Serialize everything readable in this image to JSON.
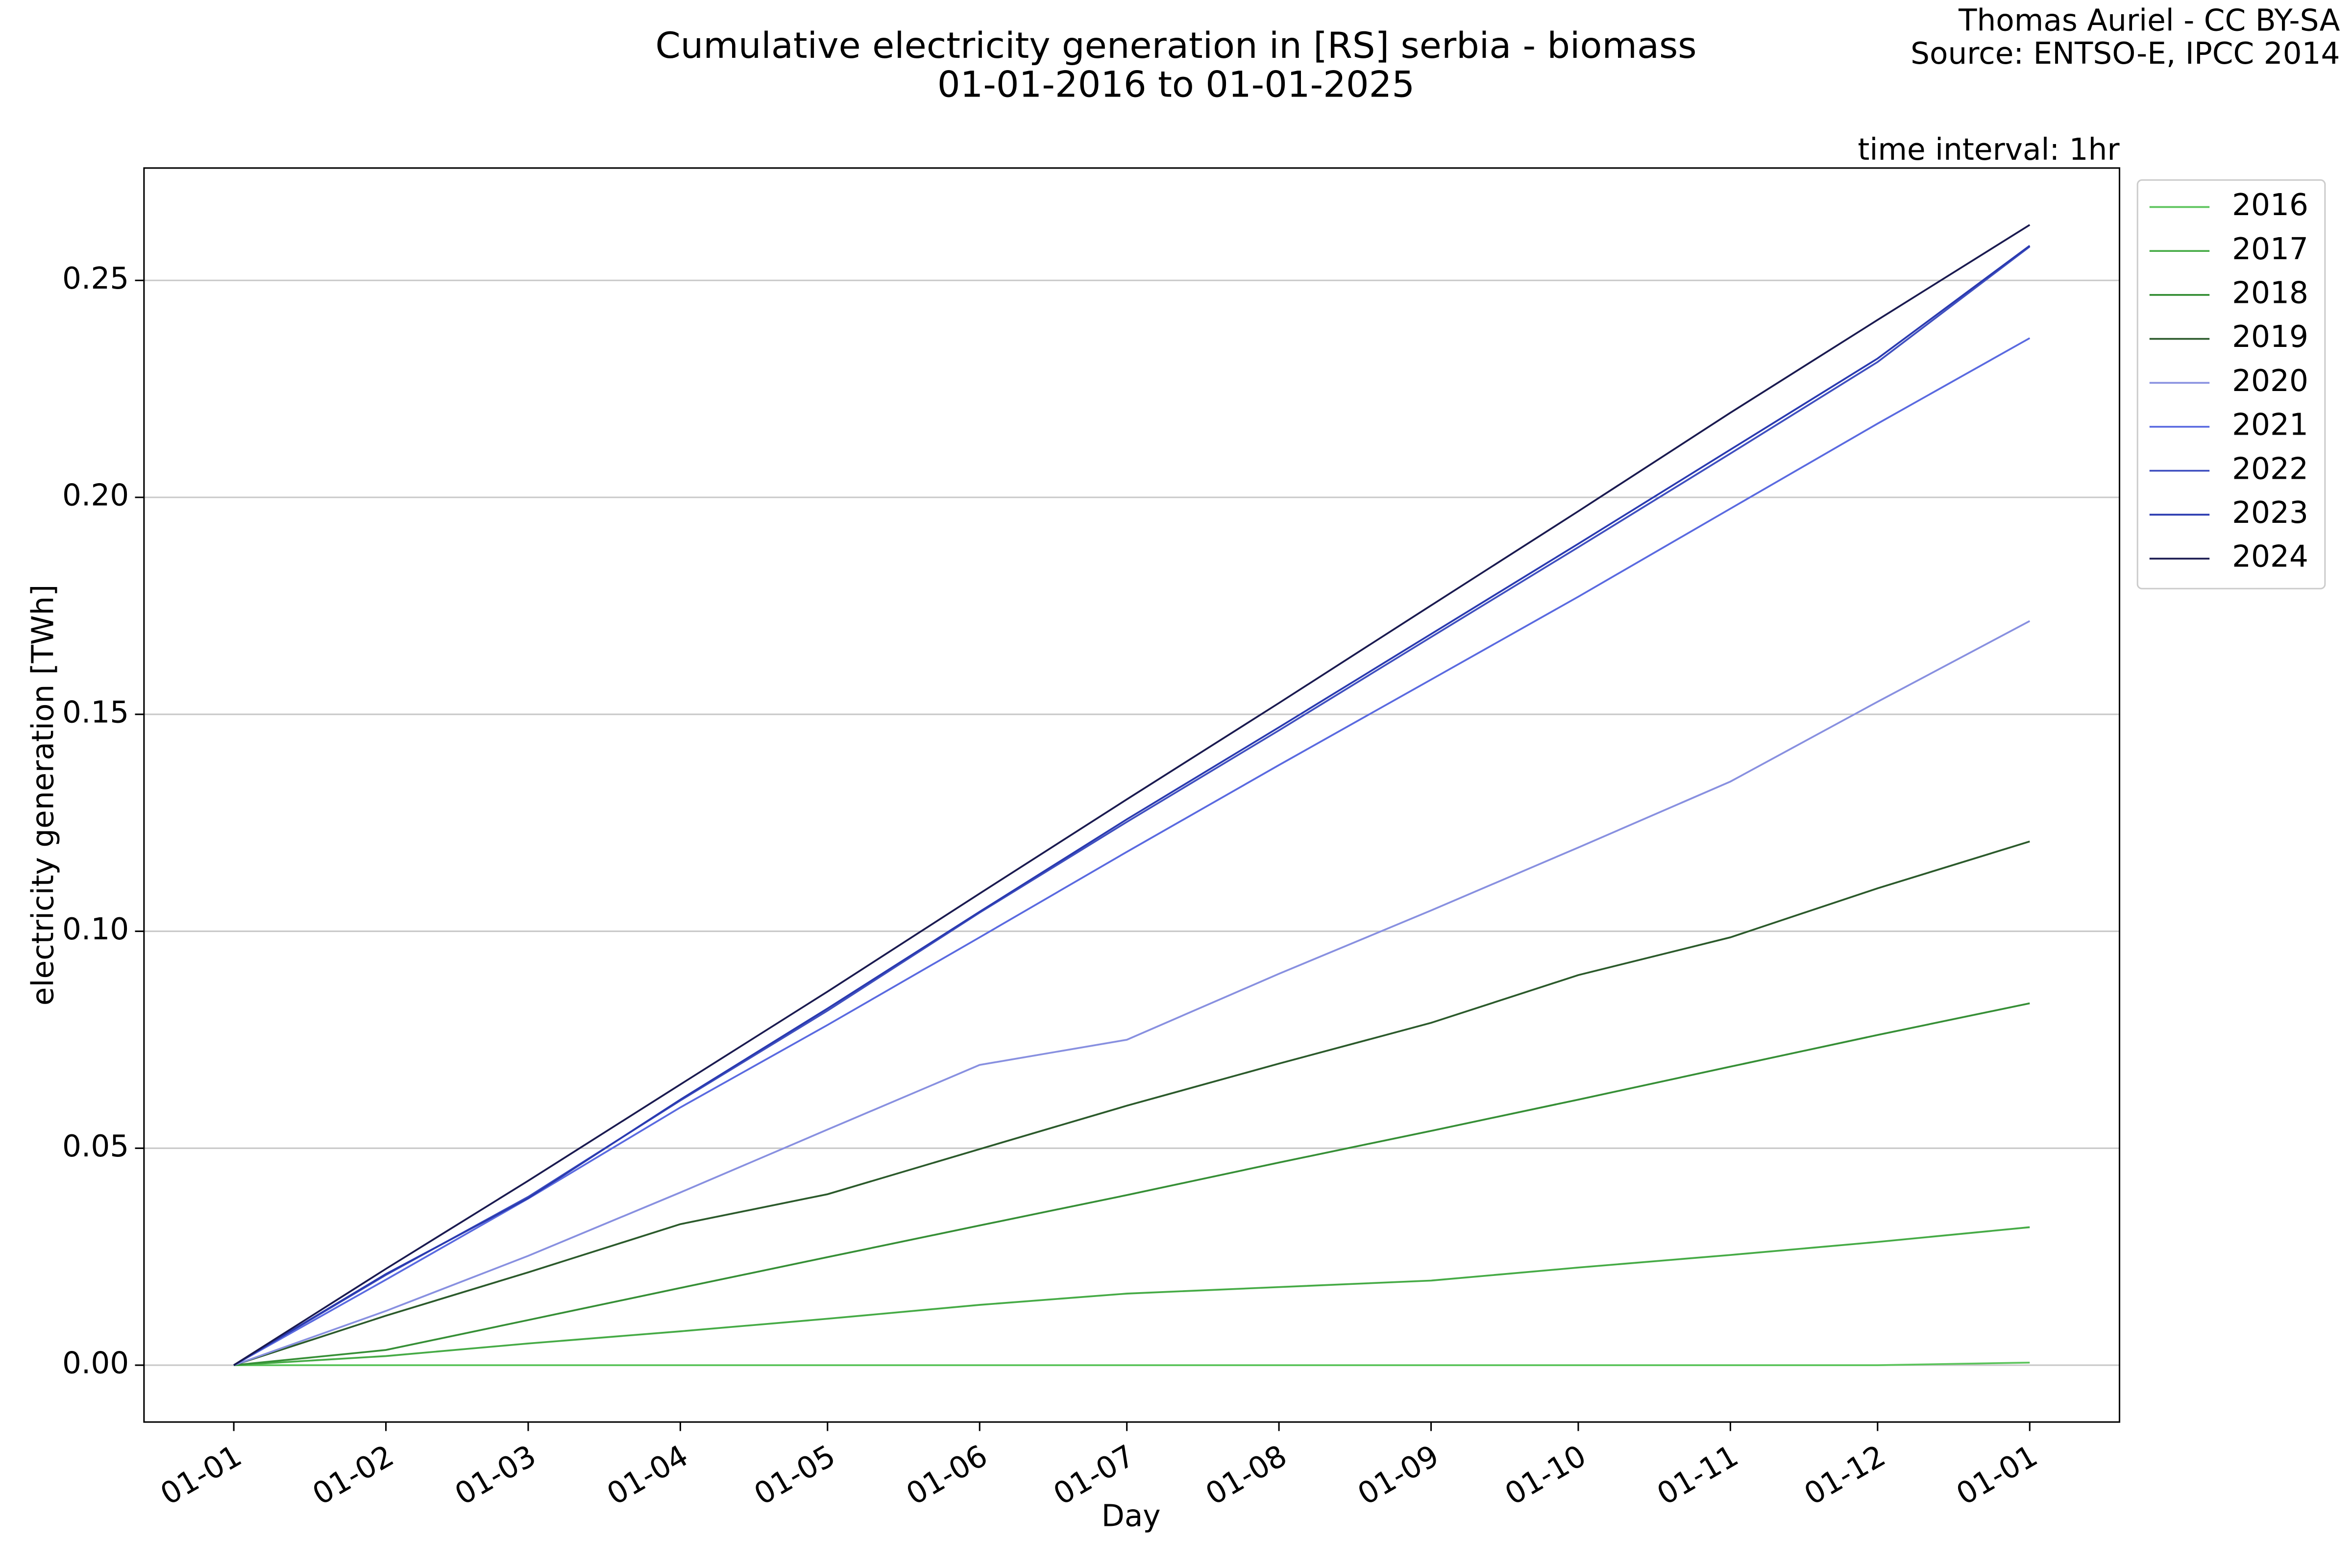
{
  "chart_data": {
    "type": "line",
    "title": "Cumulative electricity generation in [RS] serbia - biomass",
    "subtitle": "01-01-2016 to 01-01-2025",
    "credits": [
      "Thomas Auriel - CC BY-SA",
      "Source: ENTSO-E, IPCC 2014"
    ],
    "annotation": "time interval: 1hr",
    "x_label": "Day",
    "y_label": "electricity generation [TWh]",
    "x": [
      "01-01",
      "01-02",
      "01-03",
      "01-04",
      "01-05",
      "01-06",
      "01-07",
      "01-08",
      "01-09",
      "01-10",
      "01-11",
      "01-12",
      "01-01"
    ],
    "ylim": [
      -0.0131,
      0.2759
    ],
    "yticks": [
      {
        "value": 0,
        "label": "0.00"
      },
      {
        "value": 0.05,
        "label": "0.05"
      },
      {
        "value": 0.1,
        "label": "0.10"
      },
      {
        "value": 0.15,
        "label": "0.15"
      },
      {
        "value": 0.2,
        "label": "0.20"
      },
      {
        "value": 0.25,
        "label": "0.25"
      }
    ],
    "grid": true,
    "legend": "outside upper right",
    "series": [
      {
        "name": "2016",
        "color": "#5cc45c",
        "values": [
          0,
          0,
          0,
          0,
          0,
          0,
          0,
          0,
          0,
          0,
          0,
          0,
          0.0006
        ]
      },
      {
        "name": "2017",
        "color": "#46ab46",
        "values": [
          0,
          0.0021,
          0.005,
          0.0078,
          0.0107,
          0.0139,
          0.0165,
          0.018,
          0.0195,
          0.0225,
          0.0254,
          0.0284,
          0.0318
        ]
      },
      {
        "name": "2018",
        "color": "#368f36",
        "values": [
          0,
          0.0035,
          0.0104,
          0.0178,
          0.0249,
          0.0322,
          0.0392,
          0.0467,
          0.054,
          0.0612,
          0.0688,
          0.0761,
          0.0834
        ]
      },
      {
        "name": "2019",
        "color": "#2b5a2b",
        "values": [
          0,
          0.0114,
          0.0214,
          0.0325,
          0.0394,
          0.0498,
          0.0598,
          0.0695,
          0.0789,
          0.0899,
          0.0986,
          0.1099,
          0.1207
        ]
      },
      {
        "name": "2020",
        "color": "#8890e0",
        "values": [
          0,
          0.0125,
          0.0252,
          0.0398,
          0.0543,
          0.0692,
          0.075,
          0.0902,
          0.1048,
          0.1193,
          0.1345,
          0.1529,
          0.1715
        ]
      },
      {
        "name": "2021",
        "color": "#5a6ae0",
        "values": [
          0,
          0.0197,
          0.0384,
          0.0594,
          0.0784,
          0.0986,
          0.1183,
          0.1383,
          0.158,
          0.1771,
          0.1974,
          0.217,
          0.2367
        ]
      },
      {
        "name": "2022",
        "color": "#4050c0",
        "values": [
          0,
          0.0208,
          0.0388,
          0.061,
          0.0817,
          0.1043,
          0.1252,
          0.1463,
          0.1678,
          0.1885,
          0.2101,
          0.2312,
          0.2578
        ]
      },
      {
        "name": "2023",
        "color": "#2a3ab0",
        "values": [
          0,
          0.021,
          0.0385,
          0.0612,
          0.0822,
          0.1045,
          0.1258,
          0.147,
          0.1685,
          0.1893,
          0.211,
          0.232,
          0.258
        ]
      },
      {
        "name": "2024",
        "color": "#1a1a50",
        "values": [
          0,
          0.0222,
          0.0425,
          0.0647,
          0.0861,
          0.1087,
          0.1304,
          0.1526,
          0.1751,
          0.1968,
          0.2195,
          0.2409,
          0.2628
        ]
      }
    ]
  }
}
